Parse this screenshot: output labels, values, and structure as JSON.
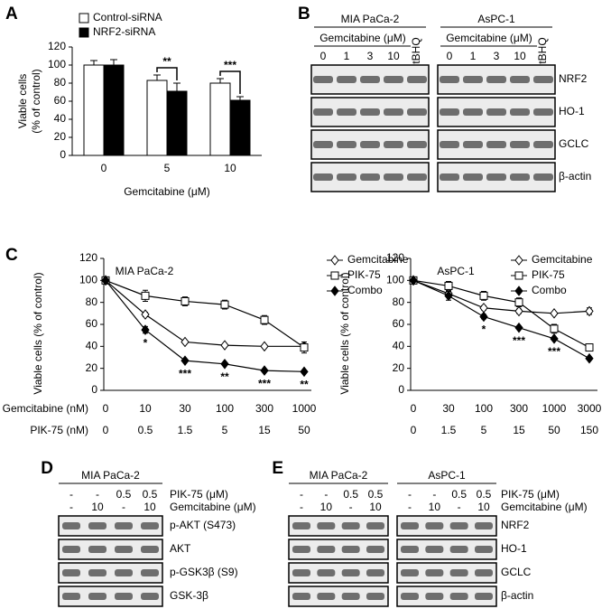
{
  "chart_data": [
    {
      "type": "bar",
      "letter": "A",
      "categories": [
        "0",
        "5",
        "10"
      ],
      "series": [
        {
          "name": "Control-siRNA",
          "color": "#ffffff",
          "values": [
            100,
            83,
            80
          ],
          "errors": [
            5,
            6,
            5
          ]
        },
        {
          "name": "NRF2-siRNA",
          "color": "#000000",
          "values": [
            100,
            71,
            61
          ],
          "errors": [
            6,
            9,
            4
          ]
        }
      ],
      "brackets": [
        null,
        "**",
        "***"
      ],
      "ylim": [
        0,
        120
      ],
      "yticks": [
        0,
        20,
        40,
        60,
        80,
        100,
        120
      ],
      "ylabel": [
        "Viable cells",
        "(% of control)"
      ],
      "xlabel": "Gemcitabine (μM)"
    },
    {
      "type": "line",
      "letter": "C",
      "title": "MIA PaCa-2",
      "category_rows": [
        {
          "label": "Gemcitabine (nM)",
          "values": [
            "0",
            "10",
            "30",
            "100",
            "300",
            "1000"
          ]
        },
        {
          "label": "PIK-75 (nM)",
          "values": [
            "0",
            "0.5",
            "1.5",
            "5",
            "15",
            "50"
          ]
        }
      ],
      "series": [
        {
          "name": "Gemcitabine",
          "marker": "open-diamond",
          "values": [
            100,
            69,
            44,
            41,
            40,
            40
          ],
          "errors": [
            0,
            2,
            1,
            1,
            1,
            1
          ]
        },
        {
          "name": "PIK-75",
          "marker": "open-square",
          "values": [
            100,
            86,
            81,
            78,
            64,
            39
          ],
          "errors": [
            0,
            5,
            4,
            4,
            4,
            5
          ]
        },
        {
          "name": "Combo",
          "marker": "filled-diamond",
          "values": [
            100,
            55,
            27,
            24,
            18,
            17
          ],
          "errors": [
            0,
            3,
            1,
            1,
            1,
            1
          ]
        }
      ],
      "stars": [
        null,
        "*",
        "***",
        "**",
        "***",
        "**"
      ],
      "ylim": [
        0,
        120
      ],
      "yticks": [
        0,
        20,
        40,
        60,
        80,
        100,
        120
      ],
      "ylabel": "Viable cells (% of control)"
    },
    {
      "type": "line",
      "title": "AsPC-1",
      "category_rows": [
        {
          "values": [
            "0",
            "30",
            "100",
            "300",
            "1000",
            "3000"
          ]
        },
        {
          "values": [
            "0",
            "1.5",
            "5",
            "15",
            "50",
            "150"
          ]
        }
      ],
      "series": [
        {
          "name": "Gemcitabine",
          "marker": "open-diamond",
          "values": [
            100,
            88,
            75,
            72,
            70,
            72
          ],
          "errors": [
            0,
            3,
            2,
            2,
            1,
            3
          ]
        },
        {
          "name": "PIK-75",
          "marker": "open-square",
          "values": [
            100,
            95,
            86,
            80,
            56,
            39
          ],
          "errors": [
            0,
            4,
            4,
            4,
            4,
            3
          ]
        },
        {
          "name": "Combo",
          "marker": "filled-diamond",
          "values": [
            100,
            86,
            67,
            57,
            47,
            29
          ],
          "errors": [
            0,
            4,
            2,
            1,
            1,
            1
          ]
        }
      ],
      "stars": [
        null,
        null,
        "*",
        "***",
        "***",
        null
      ],
      "ylim": [
        0,
        120
      ],
      "yticks": [
        0,
        20,
        40,
        60,
        80,
        100,
        120
      ],
      "ylabel": "Viable cells (% of control)"
    }
  ],
  "blots": [
    {
      "letter": "B",
      "groups": [
        {
          "name": "MIA PaCa-2",
          "treatment": "Gemcitabine (μM)",
          "lanes": [
            "0",
            "1",
            "3",
            "10",
            "tBHQ"
          ]
        },
        {
          "name": "AsPC-1",
          "treatment": "Gemcitabine (μM)",
          "lanes": [
            "0",
            "1",
            "3",
            "10",
            "tBHQ"
          ]
        }
      ],
      "proteins": [
        "NRF2",
        "HO-1",
        "GCLC",
        "β-actin"
      ]
    },
    {
      "letter": "D",
      "treatment_labels": [
        "PIK-75 (μM)",
        "Gemcitabine (μM)"
      ],
      "groups": [
        {
          "name": "MIA PaCa-2",
          "rows": [
            [
              "-",
              "-",
              "0.5",
              "0.5"
            ],
            [
              "-",
              "10",
              "-",
              "10"
            ]
          ]
        }
      ],
      "proteins": [
        "p-AKT (S473)",
        "AKT",
        "p-GSK3β (S9)",
        "GSK-3β"
      ]
    },
    {
      "letter": "E",
      "treatment_labels": [
        "PIK-75 (μM)",
        "Gemcitabine (μM)"
      ],
      "groups": [
        {
          "name": "MIA PaCa-2",
          "rows": [
            [
              "-",
              "-",
              "0.5",
              "0.5"
            ],
            [
              "-",
              "10",
              "-",
              "10"
            ]
          ]
        },
        {
          "name": "AsPC-1",
          "rows": [
            [
              "-",
              "-",
              "0.5",
              "0.5"
            ],
            [
              "-",
              "10",
              "-",
              "10"
            ]
          ]
        }
      ],
      "proteins": [
        "NRF2",
        "HO-1",
        "GCLC",
        "β-actin"
      ]
    }
  ]
}
